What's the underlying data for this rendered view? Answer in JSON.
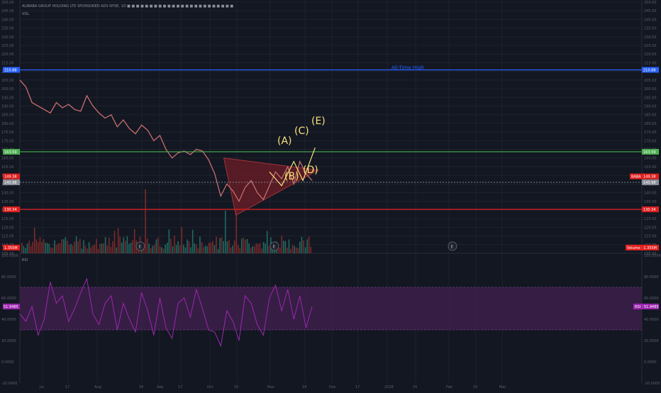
{
  "header": {
    "legend_line": "ALIBABA GROUP HOLDING LTD SPONSORED ADS NYSE, 1D ■ ■ ■ ■ ■ ■ ■ ■ ■ ■ ■ ■ ■ ■ ■ ■ ■ ■ ■ ■ ■ ■ ■ ■",
    "sub_line": "VOL"
  },
  "colors": {
    "background": "#131722",
    "grid": "#1e222d",
    "ath_line": "#2962ff",
    "resistance_line": "#4caf50",
    "support_line": "#e0201f",
    "triangle_fill": "#6d1e26",
    "wave_labels": "#f5e27a",
    "rsi_band": "#3d1f4a",
    "rsi_line": "#9c27b0",
    "volume_up": "#1f6b61",
    "volume_down": "#7a2a2a"
  },
  "chart_data": [
    {
      "type": "line",
      "title": "",
      "y_tick_labels": [
        "250.00",
        "245.00",
        "240.00",
        "235.00",
        "230.00",
        "225.00",
        "220.00",
        "215.00",
        "210.00",
        "205.00",
        "200.00",
        "195.00",
        "190.00",
        "185.00",
        "180.00",
        "175.00",
        "170.00",
        "165.00",
        "160.00",
        "155.00",
        "150.00",
        "145.00",
        "140.00",
        "135.00",
        "130.00",
        "125.00",
        "120.00",
        "115.00",
        "110.00",
        "105.00"
      ],
      "ylim": [
        105,
        250
      ],
      "x_tick_labels": [
        "Jul",
        "17",
        "Aug",
        "16",
        "Sep",
        "17",
        "Oct",
        "15",
        "Nov",
        "19",
        "Dec",
        "17",
        "2018",
        "15",
        "Feb",
        "15",
        "Mar"
      ],
      "price_series": [
        {
          "x": 0,
          "y": 205
        },
        {
          "x": 2,
          "y": 201
        },
        {
          "x": 4,
          "y": 192
        },
        {
          "x": 6,
          "y": 190
        },
        {
          "x": 8,
          "y": 188
        },
        {
          "x": 10,
          "y": 186
        },
        {
          "x": 12,
          "y": 192
        },
        {
          "x": 14,
          "y": 189
        },
        {
          "x": 16,
          "y": 191
        },
        {
          "x": 18,
          "y": 188
        },
        {
          "x": 20,
          "y": 187
        },
        {
          "x": 22,
          "y": 196
        },
        {
          "x": 24,
          "y": 190
        },
        {
          "x": 26,
          "y": 186
        },
        {
          "x": 28,
          "y": 183
        },
        {
          "x": 30,
          "y": 185
        },
        {
          "x": 32,
          "y": 178
        },
        {
          "x": 34,
          "y": 182
        },
        {
          "x": 36,
          "y": 177
        },
        {
          "x": 38,
          "y": 174
        },
        {
          "x": 40,
          "y": 179
        },
        {
          "x": 42,
          "y": 176
        },
        {
          "x": 44,
          "y": 170
        },
        {
          "x": 46,
          "y": 173
        },
        {
          "x": 48,
          "y": 165
        },
        {
          "x": 50,
          "y": 160
        },
        {
          "x": 52,
          "y": 163
        },
        {
          "x": 54,
          "y": 164
        },
        {
          "x": 56,
          "y": 162
        },
        {
          "x": 58,
          "y": 165
        },
        {
          "x": 60,
          "y": 164
        },
        {
          "x": 62,
          "y": 159
        },
        {
          "x": 64,
          "y": 151
        },
        {
          "x": 66,
          "y": 138
        },
        {
          "x": 68,
          "y": 145
        },
        {
          "x": 70,
          "y": 141
        },
        {
          "x": 72,
          "y": 135
        },
        {
          "x": 74,
          "y": 143
        },
        {
          "x": 76,
          "y": 147
        },
        {
          "x": 78,
          "y": 140
        },
        {
          "x": 80,
          "y": 136
        },
        {
          "x": 82,
          "y": 144
        },
        {
          "x": 84,
          "y": 152
        },
        {
          "x": 86,
          "y": 148
        },
        {
          "x": 88,
          "y": 155
        },
        {
          "x": 90,
          "y": 145
        },
        {
          "x": 92,
          "y": 158
        },
        {
          "x": 94,
          "y": 151
        },
        {
          "x": 96,
          "y": 147
        }
      ],
      "horizontal_levels": [
        {
          "value": 210.88,
          "label": "210.88",
          "color": "#2962ff"
        },
        {
          "value": 163.59,
          "label": "163.59",
          "color": "#4caf50"
        },
        {
          "value": 149.38,
          "label": "149.38",
          "color": "#e0201f"
        },
        {
          "value": 145.98,
          "label": "145.98",
          "color": "#8c8f99"
        },
        {
          "value": 130.34,
          "label": "130.34",
          "color": "#e0201f"
        }
      ],
      "annotations": [
        "All-Time High",
        "(A)",
        "(B)",
        "(C)",
        "(D)",
        "(E)"
      ],
      "ticker_badge": "BABA",
      "triangle": [
        {
          "x": 67,
          "y": 160
        },
        {
          "x": 71,
          "y": 127
        },
        {
          "x": 98,
          "y": 153
        }
      ],
      "wave_path": [
        {
          "x": 82,
          "y": 152
        },
        {
          "x": 86,
          "y": 144
        },
        {
          "x": 90,
          "y": 158
        },
        {
          "x": 93,
          "y": 147
        },
        {
          "x": 97,
          "y": 166
        }
      ]
    },
    {
      "type": "bar",
      "title": "Volume",
      "badge_value": "1.355M",
      "event_markers": [
        "E",
        "E",
        "E"
      ]
    },
    {
      "type": "line",
      "title": "RSI",
      "badge_value": "51.9485",
      "y_tick_labels": [
        "100.0000",
        "80.0000",
        "60.0000",
        "40.0000",
        "20.0000",
        "0.0000",
        "-20.0000"
      ],
      "ylim": [
        -20,
        100
      ],
      "band": [
        30,
        70
      ],
      "series": [
        {
          "x": 0,
          "y": 45
        },
        {
          "x": 2,
          "y": 38
        },
        {
          "x": 4,
          "y": 52
        },
        {
          "x": 6,
          "y": 25
        },
        {
          "x": 8,
          "y": 40
        },
        {
          "x": 10,
          "y": 75
        },
        {
          "x": 12,
          "y": 55
        },
        {
          "x": 14,
          "y": 62
        },
        {
          "x": 16,
          "y": 38
        },
        {
          "x": 18,
          "y": 50
        },
        {
          "x": 20,
          "y": 65
        },
        {
          "x": 22,
          "y": 78
        },
        {
          "x": 24,
          "y": 45
        },
        {
          "x": 26,
          "y": 35
        },
        {
          "x": 28,
          "y": 55
        },
        {
          "x": 30,
          "y": 62
        },
        {
          "x": 32,
          "y": 30
        },
        {
          "x": 34,
          "y": 55
        },
        {
          "x": 36,
          "y": 40
        },
        {
          "x": 38,
          "y": 28
        },
        {
          "x": 40,
          "y": 65
        },
        {
          "x": 42,
          "y": 48
        },
        {
          "x": 44,
          "y": 25
        },
        {
          "x": 46,
          "y": 60
        },
        {
          "x": 48,
          "y": 32
        },
        {
          "x": 50,
          "y": 22
        },
        {
          "x": 52,
          "y": 55
        },
        {
          "x": 54,
          "y": 60
        },
        {
          "x": 56,
          "y": 42
        },
        {
          "x": 58,
          "y": 68
        },
        {
          "x": 60,
          "y": 50
        },
        {
          "x": 62,
          "y": 30
        },
        {
          "x": 64,
          "y": 28
        },
        {
          "x": 66,
          "y": 15
        },
        {
          "x": 68,
          "y": 48
        },
        {
          "x": 70,
          "y": 38
        },
        {
          "x": 72,
          "y": 20
        },
        {
          "x": 74,
          "y": 62
        },
        {
          "x": 76,
          "y": 55
        },
        {
          "x": 78,
          "y": 35
        },
        {
          "x": 80,
          "y": 25
        },
        {
          "x": 82,
          "y": 60
        },
        {
          "x": 84,
          "y": 72
        },
        {
          "x": 86,
          "y": 48
        },
        {
          "x": 88,
          "y": 68
        },
        {
          "x": 90,
          "y": 40
        },
        {
          "x": 92,
          "y": 62
        },
        {
          "x": 94,
          "y": 32
        },
        {
          "x": 96,
          "y": 52
        }
      ]
    }
  ]
}
